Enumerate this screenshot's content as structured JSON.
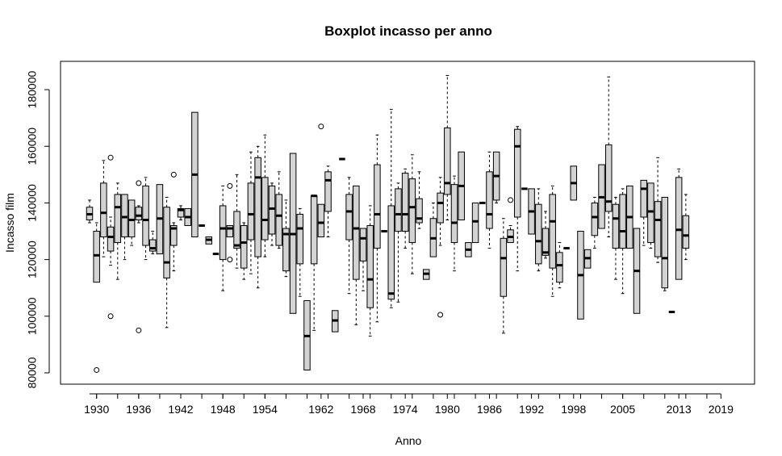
{
  "chart_data": {
    "type": "boxplot",
    "title": "Boxplot incasso per anno",
    "xlabel": "Anno",
    "ylabel": "Incasso film",
    "ylim": [
      76000,
      190000
    ],
    "yticks": [
      80000,
      100000,
      120000,
      140000,
      160000,
      180000
    ],
    "x_tick_labels": [
      "1930",
      "1936",
      "1942",
      "1948",
      "1954",
      "1962",
      "1968",
      "1974",
      "1980",
      "1986",
      "1992",
      "1998",
      "2005",
      "2013",
      "2019"
    ],
    "box_fill": "#d3d3d3",
    "boxes": [
      {
        "year": 1929,
        "lw": 133000,
        "q1": 134000,
        "med": 136000,
        "q3": 138500,
        "uw": 141000,
        "outliers": []
      },
      {
        "year": 1930,
        "lw": 112000,
        "q1": 112000,
        "med": 121500,
        "q3": 130000,
        "uw": 133000,
        "outliers": [
          81000
        ]
      },
      {
        "year": 1931,
        "lw": 121000,
        "q1": 128000,
        "med": 136500,
        "q3": 147000,
        "uw": 155000,
        "outliers": []
      },
      {
        "year": 1932,
        "lw": 118000,
        "q1": 123000,
        "med": 128000,
        "q3": 131500,
        "uw": 135000,
        "outliers": [
          100000,
          156000
        ]
      },
      {
        "year": 1933,
        "lw": 113000,
        "q1": 126000,
        "med": 138500,
        "q3": 143000,
        "uw": 147000,
        "outliers": []
      },
      {
        "year": 1934,
        "lw": 120000,
        "q1": 128000,
        "med": 135000,
        "q3": 143000,
        "uw": 143000,
        "outliers": []
      },
      {
        "year": 1935,
        "lw": 125000,
        "q1": 128000,
        "med": 134000,
        "q3": 141000,
        "uw": 141000,
        "outliers": []
      },
      {
        "year": 1936,
        "lw": 133000,
        "q1": 134000,
        "med": 135500,
        "q3": 138500,
        "uw": 139000,
        "outliers": [
          95000,
          147000
        ]
      },
      {
        "year": 1937,
        "lw": 120000,
        "q1": 125000,
        "med": 134000,
        "q3": 146000,
        "uw": 149000,
        "outliers": []
      },
      {
        "year": 1938,
        "lw": 122000,
        "q1": 123000,
        "med": 124000,
        "q3": 127000,
        "uw": 130000,
        "outliers": []
      },
      {
        "year": 1939,
        "lw": 122000,
        "q1": 122000,
        "med": 134500,
        "q3": 146500,
        "uw": 146500,
        "outliers": []
      },
      {
        "year": 1940,
        "lw": 96000,
        "q1": 113500,
        "med": 119000,
        "q3": 138500,
        "uw": 142000,
        "outliers": []
      },
      {
        "year": 1941,
        "lw": 116000,
        "q1": 125000,
        "med": 131000,
        "q3": 132000,
        "uw": 133000,
        "outliers": [
          150000
        ]
      },
      {
        "year": 1942,
        "lw": 134000,
        "q1": 135000,
        "med": 137500,
        "q3": 138000,
        "uw": 139000,
        "outliers": []
      },
      {
        "year": 1943,
        "lw": 132000,
        "q1": 132000,
        "med": 135000,
        "q3": 138000,
        "uw": 138000,
        "outliers": []
      },
      {
        "year": 1944,
        "lw": 128000,
        "q1": 128000,
        "med": 150000,
        "q3": 172000,
        "uw": 172000,
        "outliers": []
      },
      {
        "year": 1945,
        "lw": 132000,
        "q1": 132000,
        "med": 132000,
        "q3": 132000,
        "uw": 132000,
        "outliers": []
      },
      {
        "year": 1946,
        "lw": 125500,
        "q1": 125500,
        "med": 127000,
        "q3": 128000,
        "uw": 128000,
        "outliers": []
      },
      {
        "year": 1947,
        "lw": 122000,
        "q1": 122000,
        "med": 122000,
        "q3": 122000,
        "uw": 122000,
        "outliers": []
      },
      {
        "year": 1948,
        "lw": 109000,
        "q1": 120000,
        "med": 131000,
        "q3": 139000,
        "uw": 146000,
        "outliers": []
      },
      {
        "year": 1949,
        "lw": 128000,
        "q1": 128000,
        "med": 131000,
        "q3": 132000,
        "uw": 132000,
        "outliers": [
          120000,
          146000
        ]
      },
      {
        "year": 1950,
        "lw": 117000,
        "q1": 124000,
        "med": 125000,
        "q3": 137000,
        "uw": 150000,
        "outliers": []
      },
      {
        "year": 1951,
        "lw": 113000,
        "q1": 117000,
        "med": 126000,
        "q3": 132000,
        "uw": 133000,
        "outliers": []
      },
      {
        "year": 1952,
        "lw": 115000,
        "q1": 127000,
        "med": 136000,
        "q3": 147000,
        "uw": 158000,
        "outliers": []
      },
      {
        "year": 1953,
        "lw": 110000,
        "q1": 121000,
        "med": 149000,
        "q3": 156000,
        "uw": 160000,
        "outliers": []
      },
      {
        "year": 1954,
        "lw": 121000,
        "q1": 127000,
        "med": 134000,
        "q3": 149000,
        "uw": 164000,
        "outliers": []
      },
      {
        "year": 1955,
        "lw": 125000,
        "q1": 129000,
        "med": 138000,
        "q3": 146000,
        "uw": 147000,
        "outliers": []
      },
      {
        "year": 1956,
        "lw": 124000,
        "q1": 125000,
        "med": 135500,
        "q3": 143000,
        "uw": 151000,
        "outliers": []
      },
      {
        "year": 1957,
        "lw": 114000,
        "q1": 116000,
        "med": 129000,
        "q3": 131000,
        "uw": 141000,
        "outliers": []
      },
      {
        "year": 1958,
        "lw": 101000,
        "q1": 101000,
        "med": 129000,
        "q3": 157500,
        "uw": 157500,
        "outliers": []
      },
      {
        "year": 1959,
        "lw": 107000,
        "q1": 118500,
        "med": 131000,
        "q3": 136000,
        "uw": 138000,
        "outliers": []
      },
      {
        "year": 1960,
        "lw": 81000,
        "q1": 81000,
        "med": 93000,
        "q3": 105500,
        "uw": 105500,
        "outliers": []
      },
      {
        "year": 1961,
        "lw": 95000,
        "q1": 118500,
        "med": 142500,
        "q3": 142500,
        "uw": 142500,
        "outliers": []
      },
      {
        "year": 1962,
        "lw": 128000,
        "q1": 128000,
        "med": 133000,
        "q3": 139500,
        "uw": 139500,
        "outliers": [
          167000
        ]
      },
      {
        "year": 1963,
        "lw": 128000,
        "q1": 137000,
        "med": 148000,
        "q3": 151000,
        "uw": 153000,
        "outliers": []
      },
      {
        "year": 1964,
        "lw": 94500,
        "q1": 94500,
        "med": 98500,
        "q3": 102000,
        "uw": 102000,
        "outliers": []
      },
      {
        "year": 1965,
        "lw": 155500,
        "q1": 155500,
        "med": 155500,
        "q3": 155500,
        "uw": 155500,
        "outliers": []
      },
      {
        "year": 1966,
        "lw": 108000,
        "q1": 127000,
        "med": 137000,
        "q3": 143000,
        "uw": 149000,
        "outliers": []
      },
      {
        "year": 1967,
        "lw": 97000,
        "q1": 113000,
        "med": 131000,
        "q3": 146000,
        "uw": 146000,
        "outliers": []
      },
      {
        "year": 1968,
        "lw": 109000,
        "q1": 119500,
        "med": 127500,
        "q3": 131000,
        "uw": 131000,
        "outliers": []
      },
      {
        "year": 1969,
        "lw": 93000,
        "q1": 103000,
        "med": 113000,
        "q3": 132000,
        "uw": 139000,
        "outliers": []
      },
      {
        "year": 1970,
        "lw": 98000,
        "q1": 124000,
        "med": 136000,
        "q3": 153500,
        "uw": 164000,
        "outliers": []
      },
      {
        "year": 1971,
        "lw": 130000,
        "q1": 130000,
        "med": 130000,
        "q3": 130000,
        "uw": 130000,
        "outliers": []
      },
      {
        "year": 1972,
        "lw": 103000,
        "q1": 106000,
        "med": 108000,
        "q3": 139000,
        "uw": 173000,
        "outliers": []
      },
      {
        "year": 1973,
        "lw": 105000,
        "q1": 130000,
        "med": 136000,
        "q3": 145000,
        "uw": 147000,
        "outliers": []
      },
      {
        "year": 1974,
        "lw": 124000,
        "q1": 130000,
        "med": 136000,
        "q3": 150500,
        "uw": 152000,
        "outliers": []
      },
      {
        "year": 1975,
        "lw": 115000,
        "q1": 126000,
        "med": 138500,
        "q3": 148500,
        "uw": 157000,
        "outliers": []
      },
      {
        "year": 1976,
        "lw": 131000,
        "q1": 133000,
        "med": 134500,
        "q3": 141500,
        "uw": 151000,
        "outliers": []
      },
      {
        "year": 1977,
        "lw": 113000,
        "q1": 113000,
        "med": 115000,
        "q3": 116500,
        "uw": 116500,
        "outliers": []
      },
      {
        "year": 1978,
        "lw": 121000,
        "q1": 121000,
        "med": 127500,
        "q3": 134500,
        "uw": 140000,
        "outliers": []
      },
      {
        "year": 1979,
        "lw": 125000,
        "q1": 133000,
        "med": 140000,
        "q3": 143500,
        "uw": 149000,
        "outliers": [
          100500
        ]
      },
      {
        "year": 1980,
        "lw": 134000,
        "q1": 143000,
        "med": 147000,
        "q3": 166500,
        "uw": 185000,
        "outliers": []
      },
      {
        "year": 1981,
        "lw": 116000,
        "q1": 126000,
        "med": 133000,
        "q3": 146500,
        "uw": 149500,
        "outliers": []
      },
      {
        "year": 1982,
        "lw": 134000,
        "q1": 134000,
        "med": 146000,
        "q3": 158000,
        "uw": 158000,
        "outliers": []
      },
      {
        "year": 1983,
        "lw": 121000,
        "q1": 121000,
        "med": 123500,
        "q3": 126000,
        "uw": 126000,
        "outliers": []
      },
      {
        "year": 1984,
        "lw": 126000,
        "q1": 126000,
        "med": 133500,
        "q3": 140000,
        "uw": 140000,
        "outliers": []
      },
      {
        "year": 1985,
        "lw": 140000,
        "q1": 140000,
        "med": 140000,
        "q3": 140000,
        "uw": 140000,
        "outliers": []
      },
      {
        "year": 1986,
        "lw": 124000,
        "q1": 131000,
        "med": 136000,
        "q3": 151000,
        "uw": 158000,
        "outliers": []
      },
      {
        "year": 1987,
        "lw": 140000,
        "q1": 141000,
        "med": 149500,
        "q3": 158000,
        "uw": 158000,
        "outliers": []
      },
      {
        "year": 1988,
        "lw": 94000,
        "q1": 107000,
        "med": 120500,
        "q3": 127500,
        "uw": 134500,
        "outliers": []
      },
      {
        "year": 1989,
        "lw": 126000,
        "q1": 126000,
        "med": 128000,
        "q3": 130500,
        "uw": 132000,
        "outliers": [
          141000
        ]
      },
      {
        "year": 1990,
        "lw": 116000,
        "q1": 135000,
        "med": 160000,
        "q3": 166000,
        "uw": 167000,
        "outliers": []
      },
      {
        "year": 1991,
        "lw": 145000,
        "q1": 145000,
        "med": 145000,
        "q3": 145000,
        "uw": 145000,
        "outliers": []
      },
      {
        "year": 1992,
        "lw": 129000,
        "q1": 129000,
        "med": 137000,
        "q3": 145000,
        "uw": 145000,
        "outliers": []
      },
      {
        "year": 1993,
        "lw": 116000,
        "q1": 118500,
        "med": 126500,
        "q3": 139500,
        "uw": 145000,
        "outliers": []
      },
      {
        "year": 1994,
        "lw": 120500,
        "q1": 121500,
        "med": 122500,
        "q3": 131000,
        "uw": 137000,
        "outliers": []
      },
      {
        "year": 1995,
        "lw": 107000,
        "q1": 117000,
        "med": 133500,
        "q3": 143000,
        "uw": 146000,
        "outliers": []
      },
      {
        "year": 1996,
        "lw": 110000,
        "q1": 112000,
        "med": 118000,
        "q3": 122500,
        "uw": 126000,
        "outliers": []
      },
      {
        "year": 1997,
        "lw": 124000,
        "q1": 124000,
        "med": 124000,
        "q3": 124000,
        "uw": 124000,
        "outliers": []
      },
      {
        "year": 1998,
        "lw": 141000,
        "q1": 141000,
        "med": 147000,
        "q3": 153000,
        "uw": 153000,
        "outliers": []
      },
      {
        "year": 1999,
        "lw": 99000,
        "q1": 99000,
        "med": 114500,
        "q3": 130000,
        "uw": 130000,
        "outliers": []
      },
      {
        "year": 2000,
        "lw": 117000,
        "q1": 117000,
        "med": 120500,
        "q3": 123500,
        "uw": 123500,
        "outliers": []
      },
      {
        "year": 2001,
        "lw": 124000,
        "q1": 128500,
        "med": 135000,
        "q3": 140000,
        "uw": 142000,
        "outliers": []
      },
      {
        "year": 2002,
        "lw": 131000,
        "q1": 131000,
        "med": 142000,
        "q3": 153500,
        "uw": 153500,
        "outliers": []
      },
      {
        "year": 2003,
        "lw": 128000,
        "q1": 137000,
        "med": 140500,
        "q3": 160500,
        "uw": 184500,
        "outliers": []
      },
      {
        "year": 2004,
        "lw": 113000,
        "q1": 124000,
        "med": 134500,
        "q3": 139500,
        "uw": 142000,
        "outliers": []
      },
      {
        "year": 2005,
        "lw": 108000,
        "q1": 124000,
        "med": 130000,
        "q3": 143000,
        "uw": 145000,
        "outliers": []
      },
      {
        "year": 2006,
        "lw": 124000,
        "q1": 124000,
        "med": 135000,
        "q3": 146000,
        "uw": 146000,
        "outliers": []
      },
      {
        "year": 2007,
        "lw": 101000,
        "q1": 101000,
        "med": 116000,
        "q3": 131000,
        "uw": 131000,
        "outliers": []
      },
      {
        "year": 2008,
        "lw": 125000,
        "q1": 135000,
        "med": 145000,
        "q3": 148000,
        "uw": 148000,
        "outliers": []
      },
      {
        "year": 2009,
        "lw": 124000,
        "q1": 126000,
        "med": 137000,
        "q3": 147000,
        "uw": 147000,
        "outliers": []
      },
      {
        "year": 2010,
        "lw": 119000,
        "q1": 121000,
        "med": 134000,
        "q3": 140500,
        "uw": 156000,
        "outliers": []
      },
      {
        "year": 2011,
        "lw": 109000,
        "q1": 110000,
        "med": 120500,
        "q3": 142000,
        "uw": 142000,
        "outliers": []
      },
      {
        "year": 2012,
        "lw": 101500,
        "q1": 101500,
        "med": 101500,
        "q3": 101500,
        "uw": 101500,
        "outliers": []
      },
      {
        "year": 2013,
        "lw": 113000,
        "q1": 113000,
        "med": 130500,
        "q3": 149000,
        "uw": 152000,
        "outliers": []
      },
      {
        "year": 2014,
        "lw": 120000,
        "q1": 124000,
        "med": 128500,
        "q3": 135500,
        "uw": 143000,
        "outliers": []
      }
    ]
  }
}
